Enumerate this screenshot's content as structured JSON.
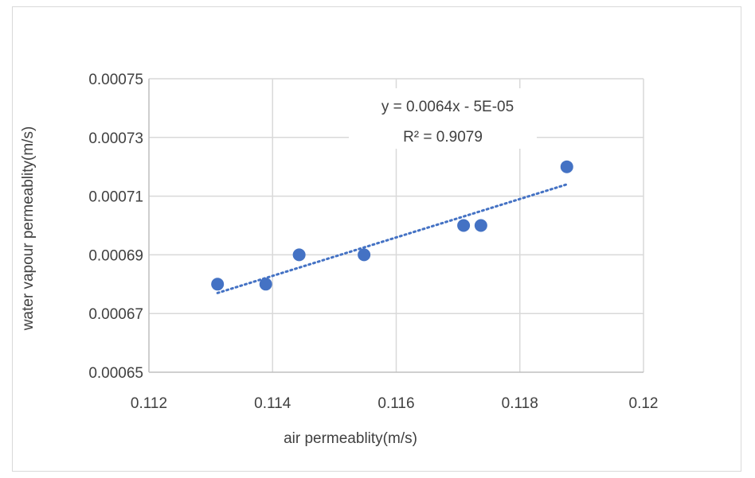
{
  "chart_data": {
    "type": "scatter",
    "title": "",
    "xlabel": "air permeablity(m/s)",
    "ylabel": "water vapour permeablity(m/s)",
    "xlim": [
      0.112,
      0.12
    ],
    "ylim": [
      0.00065,
      0.00075
    ],
    "x_ticks": [
      "0.112",
      "0.114",
      "0.116",
      "0.118",
      "0.12"
    ],
    "y_ticks": [
      "0.00065",
      "0.00067",
      "0.00069",
      "0.00071",
      "0.00073",
      "0.00075"
    ],
    "grid": true,
    "legend": "none",
    "series": [
      {
        "x": [
          0.11311,
          0.11389,
          0.11443,
          0.11548,
          0.11709,
          0.11737,
          0.11876
        ],
        "y": [
          0.00068,
          0.00068,
          0.00069,
          0.00069,
          0.0007,
          0.0007,
          0.00072
        ],
        "color": "#4472c4"
      }
    ],
    "trendline": {
      "type": "linear",
      "style": "dotted",
      "color": "#4472c4",
      "x_range": [
        0.11311,
        0.11876
      ],
      "y_range": [
        0.000677,
        0.000714
      ],
      "equation": "y = 0.0064x - 5E-05",
      "r_squared": "R² = 0.9079"
    },
    "colors": {
      "marker": "#4472c4",
      "grid": "#d9d9d9",
      "axis": "#bfbfbf",
      "text": "#404040"
    }
  }
}
